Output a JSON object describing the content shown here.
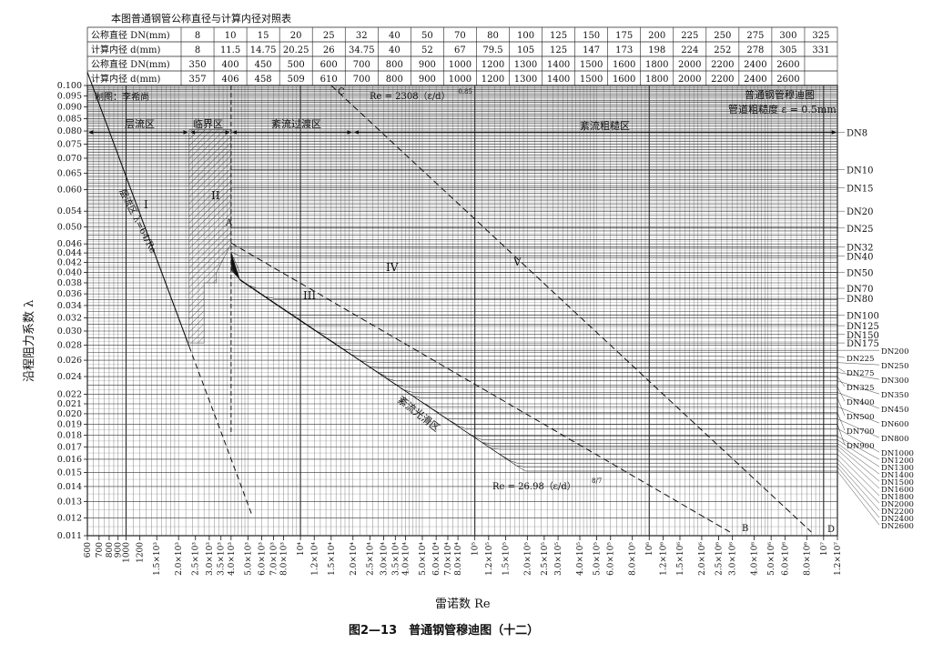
{
  "figure": {
    "table_title": "本图普通钢管公称直径与计算内径对照表",
    "caption": "图2—13　普通钢管穆迪图（十二）"
  },
  "dn_table": {
    "row_label_dn": "公称直径 DN(mm)",
    "row_label_d": "计算内径 d(mm)",
    "rows1_dn": [
      "8",
      "10",
      "15",
      "20",
      "25",
      "32",
      "40",
      "50",
      "70",
      "80",
      "100",
      "125",
      "150",
      "175",
      "200",
      "225",
      "250",
      "275",
      "300",
      "325"
    ],
    "rows1_d": [
      "8",
      "11.5",
      "14.75",
      "20.25",
      "26",
      "34.75",
      "40",
      "52",
      "67",
      "79.5",
      "105",
      "125",
      "147",
      "173",
      "198",
      "224",
      "252",
      "278",
      "305",
      "331"
    ],
    "rows2_dn": [
      "350",
      "400",
      "450",
      "500",
      "600",
      "700",
      "800",
      "900",
      "1000",
      "1200",
      "1300",
      "1400",
      "1500",
      "1600",
      "1800",
      "2000",
      "2200",
      "2400",
      "2600"
    ],
    "rows2_d": [
      "357",
      "406",
      "458",
      "509",
      "610",
      "700",
      "800",
      "900",
      "1000",
      "1200",
      "1300",
      "1400",
      "1500",
      "1600",
      "1800",
      "2000",
      "2200",
      "2400",
      "2600"
    ]
  },
  "annotations": {
    "author": "制图：李希尚",
    "zone_laminar": "层流区",
    "zone_critical": "临界区",
    "zone_transition": "紊流过渡区",
    "zone_rough": "紊流粗糙区",
    "zone_smooth": "紊流光滑区",
    "laminar_formula": "层流区 λ=64/Re",
    "formula_c": "Re = 2308（ε/d）",
    "formula_c_exp": "-0.85",
    "formula_b": "Re = 26.98（ε/d）",
    "formula_b_exp": "8/7",
    "title_right_1": "普通钢管穆迪图",
    "title_right_2": "管道粗糙度 ε = 0.5mm",
    "roman_I": "I",
    "roman_II": "II",
    "roman_III": "III",
    "roman_IV": "IV",
    "roman_V": "V",
    "letter_A": "A",
    "letter_B": "B",
    "letter_C": "C",
    "letter_D": "D"
  },
  "chart_data": {
    "type": "line",
    "title": "普通钢管穆迪图",
    "xlabel": "雷诺数 Re",
    "ylabel": "沿程阻力系数 λ",
    "x_scale": "log",
    "y_scale": "log",
    "xlim": [
      600,
      12000000
    ],
    "ylim": [
      0.011,
      0.1
    ],
    "grid": true,
    "roughness_mm": 0.5,
    "x_tick_labels": [
      {
        "v": 600,
        "t": "600"
      },
      {
        "v": 700,
        "t": "700"
      },
      {
        "v": 800,
        "t": "800"
      },
      {
        "v": 900,
        "t": "900"
      },
      {
        "v": 1000,
        "t": "1000"
      },
      {
        "v": 1200,
        "t": "1200"
      },
      {
        "v": 1500,
        "t": "1.5×10³"
      },
      {
        "v": 2000,
        "t": "2.0×10³"
      },
      {
        "v": 2500,
        "t": "2.5×10³"
      },
      {
        "v": 3000,
        "t": "3.0×10³"
      },
      {
        "v": 3500,
        "t": "3.5×10³"
      },
      {
        "v": 4000,
        "t": "4.0×10³"
      },
      {
        "v": 5000,
        "t": "5.0×10³"
      },
      {
        "v": 6000,
        "t": "6.0×10³"
      },
      {
        "v": 7000,
        "t": "7.0×10³"
      },
      {
        "v": 8000,
        "t": "8.0×10³"
      },
      {
        "v": 10000,
        "t": "10⁴"
      },
      {
        "v": 12000,
        "t": "1.2×10⁴"
      },
      {
        "v": 15000,
        "t": "1.5×10⁴"
      },
      {
        "v": 20000,
        "t": "2.0×10⁴"
      },
      {
        "v": 25000,
        "t": "2.5×10⁴"
      },
      {
        "v": 30000,
        "t": "3.0×10⁴"
      },
      {
        "v": 35000,
        "t": "3.5×10⁴"
      },
      {
        "v": 40000,
        "t": "4.0×10⁴"
      },
      {
        "v": 50000,
        "t": "5.0×10⁴"
      },
      {
        "v": 60000,
        "t": "6.0×10⁴"
      },
      {
        "v": 70000,
        "t": "7.0×10⁴"
      },
      {
        "v": 80000,
        "t": "8.0×10⁴"
      },
      {
        "v": 100000,
        "t": "10⁵"
      },
      {
        "v": 120000,
        "t": "1.2×10⁵"
      },
      {
        "v": 150000,
        "t": "1.5×10⁵"
      },
      {
        "v": 200000,
        "t": "2.0×10⁵"
      },
      {
        "v": 250000,
        "t": "2.5×10⁵"
      },
      {
        "v": 300000,
        "t": "3.0×10⁵"
      },
      {
        "v": 400000,
        "t": "4.0×10⁵"
      },
      {
        "v": 500000,
        "t": "5.0×10⁵"
      },
      {
        "v": 600000,
        "t": "6.0×10⁵"
      },
      {
        "v": 800000,
        "t": "8.0×10⁵"
      },
      {
        "v": 1000000,
        "t": "10⁶"
      },
      {
        "v": 1200000,
        "t": "1.2×10⁶"
      },
      {
        "v": 1500000,
        "t": "1.5×10⁶"
      },
      {
        "v": 2000000,
        "t": "2.0×10⁶"
      },
      {
        "v": 2500000,
        "t": "2.5×10⁶"
      },
      {
        "v": 3000000,
        "t": "3.0×10⁶"
      },
      {
        "v": 4000000,
        "t": "4.0×10⁶"
      },
      {
        "v": 5000000,
        "t": "5.0×10⁶"
      },
      {
        "v": 6000000,
        "t": "6.0×10⁶"
      },
      {
        "v": 8000000,
        "t": "8.0×10⁶"
      },
      {
        "v": 10000000,
        "t": "10⁷"
      },
      {
        "v": 12000000,
        "t": "1.2×10⁷"
      }
    ],
    "y_tick_labels": [
      "0.100",
      "0.095",
      "0.090",
      "0.085",
      "0.080",
      "0.075",
      "0.070",
      "0.065",
      "0.060",
      "0.054",
      "0.050",
      "0.046",
      "0.044",
      "0.042",
      "0.040",
      "0.038",
      "0.036",
      "0.034",
      "0.032",
      "0.030",
      "0.028",
      "0.026",
      "0.024",
      "0.022",
      "0.021",
      "0.020",
      "0.019",
      "0.018",
      "0.017",
      "0.016",
      "0.015",
      "0.014",
      "0.013",
      "0.012",
      "0.011"
    ],
    "laminar_line": {
      "x": [
        600,
        5300
      ],
      "y": [
        0.1067,
        0.0121
      ]
    },
    "boundary_C": {
      "x": [
        15000,
        8500000
      ],
      "y": [
        0.1,
        0.0112
      ]
    },
    "boundary_B": {
      "x": [
        4000,
        2900000
      ],
      "y": [
        0.0462,
        0.0112
      ]
    },
    "series": [
      {
        "name": "DN8",
        "d_mm": 8,
        "lambda": 0.0795
      },
      {
        "name": "DN10",
        "d_mm": 11.5,
        "lambda": 0.0662
      },
      {
        "name": "DN15",
        "d_mm": 14.75,
        "lambda": 0.0605
      },
      {
        "name": "DN20",
        "d_mm": 20.25,
        "lambda": 0.054
      },
      {
        "name": "DN25",
        "d_mm": 26,
        "lambda": 0.0497
      },
      {
        "name": "DN32",
        "d_mm": 34.75,
        "lambda": 0.0453
      },
      {
        "name": "DN40",
        "d_mm": 40,
        "lambda": 0.0433
      },
      {
        "name": "DN50",
        "d_mm": 52,
        "lambda": 0.04
      },
      {
        "name": "DN70",
        "d_mm": 67,
        "lambda": 0.037
      },
      {
        "name": "DN80",
        "d_mm": 79.5,
        "lambda": 0.0352
      },
      {
        "name": "DN100",
        "d_mm": 105,
        "lambda": 0.0324
      },
      {
        "name": "DN125",
        "d_mm": 125,
        "lambda": 0.0308
      },
      {
        "name": "DN150",
        "d_mm": 147,
        "lambda": 0.0295
      },
      {
        "name": "DN175",
        "d_mm": 173,
        "lambda": 0.0283
      },
      {
        "name": "DN200",
        "d_mm": 198,
        "lambda": 0.0273
      },
      {
        "name": "DN225",
        "d_mm": 224,
        "lambda": 0.0265
      },
      {
        "name": "DN250",
        "d_mm": 252,
        "lambda": 0.0257
      },
      {
        "name": "DN275",
        "d_mm": 278,
        "lambda": 0.0251
      },
      {
        "name": "DN300",
        "d_mm": 305,
        "lambda": 0.0245
      },
      {
        "name": "DN325",
        "d_mm": 331,
        "lambda": 0.024
      },
      {
        "name": "DN350",
        "d_mm": 357,
        "lambda": 0.0235
      },
      {
        "name": "DN400",
        "d_mm": 406,
        "lambda": 0.0228
      },
      {
        "name": "DN450",
        "d_mm": 458,
        "lambda": 0.0222
      },
      {
        "name": "DN500",
        "d_mm": 509,
        "lambda": 0.0216
      },
      {
        "name": "DN600",
        "d_mm": 610,
        "lambda": 0.0207
      },
      {
        "name": "DN700",
        "d_mm": 700,
        "lambda": 0.0201
      },
      {
        "name": "DN800",
        "d_mm": 800,
        "lambda": 0.0195
      },
      {
        "name": "DN900",
        "d_mm": 900,
        "lambda": 0.019
      },
      {
        "name": "DN1000",
        "d_mm": 1000,
        "lambda": 0.0186
      },
      {
        "name": "DN1200",
        "d_mm": 1200,
        "lambda": 0.0179
      },
      {
        "name": "DN1300",
        "d_mm": 1300,
        "lambda": 0.0176
      },
      {
        "name": "DN1400",
        "d_mm": 1400,
        "lambda": 0.0173
      },
      {
        "name": "DN1500",
        "d_mm": 1500,
        "lambda": 0.0171
      },
      {
        "name": "DN1600",
        "d_mm": 1600,
        "lambda": 0.0168
      },
      {
        "name": "DN1800",
        "d_mm": 1800,
        "lambda": 0.0164
      },
      {
        "name": "DN2000",
        "d_mm": 2000,
        "lambda": 0.016
      },
      {
        "name": "DN2200",
        "d_mm": 2200,
        "lambda": 0.0157
      },
      {
        "name": "DN2400",
        "d_mm": 2400,
        "lambda": 0.0154
      },
      {
        "name": "DN2600",
        "d_mm": 2600,
        "lambda": 0.0151
      }
    ]
  }
}
